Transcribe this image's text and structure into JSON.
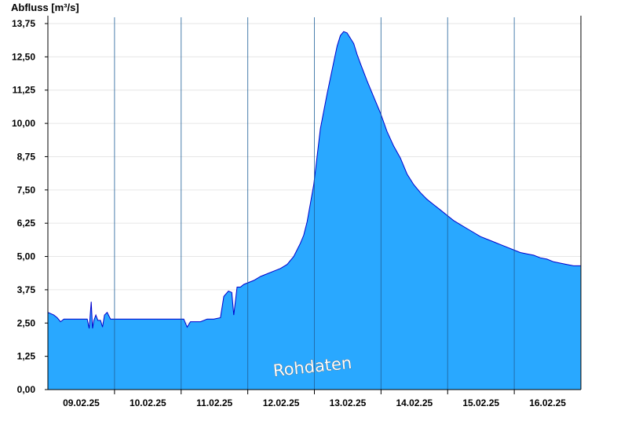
{
  "chart_data": {
    "type": "area",
    "ylabel": "Abfluss [m³/s]",
    "ylim": [
      0,
      13.75
    ],
    "yticks": [
      "0,00",
      "1,25",
      "2,50",
      "3,75",
      "5,00",
      "6,25",
      "7,50",
      "8,75",
      "10,00",
      "11,25",
      "12,50",
      "13,75"
    ],
    "xlim": [
      8.71,
      16.71
    ],
    "xticks": [
      "09.02.25",
      "10.02.25",
      "11.02.25",
      "12.02.25",
      "13.02.25",
      "14.02.25",
      "15.02.25",
      "16.02.25"
    ],
    "day_boundaries": [
      9.71,
      10.71,
      11.71,
      12.71,
      13.71,
      14.71,
      15.71
    ],
    "grid": true,
    "fill_color": "#29a8ff",
    "line_color": "#0000cc",
    "annotation": "Rohdaten",
    "series": [
      {
        "x": [
          8.71,
          8.8,
          8.85,
          8.9,
          8.95,
          9.1,
          9.3,
          9.33,
          9.36,
          9.38,
          9.4,
          9.43,
          9.46,
          9.5,
          9.53,
          9.56,
          9.6,
          9.65,
          10.0,
          10.5,
          10.75,
          10.8,
          10.85,
          10.9,
          11.0,
          11.1,
          11.2,
          11.3,
          11.35,
          11.42,
          11.47,
          11.5,
          11.55,
          11.6,
          11.65,
          11.7,
          11.8,
          11.9,
          12.0,
          12.1,
          12.2,
          12.3,
          12.4,
          12.5,
          12.55,
          12.6,
          12.7,
          12.8,
          12.9,
          13.0,
          13.05,
          13.1,
          13.15,
          13.2,
          13.3,
          13.35,
          13.4,
          13.5,
          13.6,
          13.7,
          13.8,
          13.9,
          14.0,
          14.1,
          14.2,
          14.3,
          14.4,
          14.5,
          14.6,
          14.7,
          14.8,
          14.9,
          15.0,
          15.1,
          15.2,
          15.3,
          15.4,
          15.5,
          15.6,
          15.7,
          15.8,
          15.9,
          16.0,
          16.1,
          16.2,
          16.3,
          16.4,
          16.5,
          16.6,
          16.71
        ],
        "values": [
          2.9,
          2.8,
          2.7,
          2.55,
          2.65,
          2.65,
          2.65,
          2.3,
          3.3,
          2.3,
          2.6,
          2.8,
          2.6,
          2.6,
          2.35,
          2.8,
          2.9,
          2.65,
          2.65,
          2.65,
          2.65,
          2.35,
          2.55,
          2.55,
          2.55,
          2.65,
          2.65,
          2.7,
          3.5,
          3.7,
          3.65,
          2.8,
          3.85,
          3.85,
          3.95,
          4.0,
          4.1,
          4.25,
          4.35,
          4.45,
          4.55,
          4.7,
          5.0,
          5.5,
          5.8,
          6.3,
          7.7,
          9.8,
          11.1,
          12.3,
          12.9,
          13.3,
          13.45,
          13.4,
          13.0,
          12.6,
          12.25,
          11.6,
          11.0,
          10.4,
          9.7,
          9.15,
          8.7,
          8.1,
          7.7,
          7.4,
          7.15,
          6.95,
          6.75,
          6.55,
          6.35,
          6.2,
          6.05,
          5.9,
          5.75,
          5.65,
          5.55,
          5.45,
          5.35,
          5.25,
          5.15,
          5.1,
          5.05,
          4.95,
          4.9,
          4.8,
          4.75,
          4.7,
          4.65,
          4.65
        ]
      }
    ]
  }
}
